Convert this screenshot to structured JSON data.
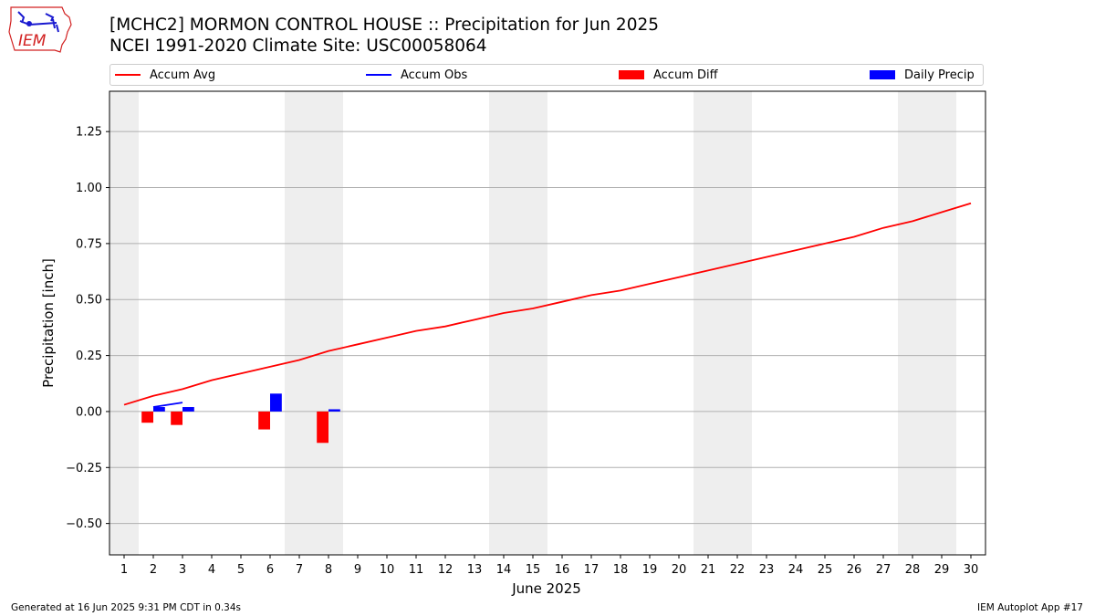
{
  "logo": {
    "text": "IEM",
    "color": "#d22222",
    "accent": "#1a1ad0"
  },
  "header": {
    "title_line1": "[MCHC2] MORMON CONTROL HOUSE :: Precipitation for Jun 2025",
    "title_line2": "NCEI 1991-2020 Climate Site: USC00058064"
  },
  "legend": {
    "items": [
      {
        "label": "Accum Avg",
        "kind": "line",
        "color": "#ff0000"
      },
      {
        "label": "Accum Obs",
        "kind": "line",
        "color": "#0000ff"
      },
      {
        "label": "Accum Diff",
        "kind": "box",
        "color": "#ff0000"
      },
      {
        "label": "Daily Precip",
        "kind": "box",
        "color": "#0000ff"
      }
    ],
    "placement": "top, spanning full width above plot"
  },
  "footer": {
    "left": "Generated at 16 Jun 2025 9:31 PM CDT in 0.34s",
    "right": "IEM Autoplot App #17"
  },
  "chart_data": {
    "type": "line",
    "xlabel": "June 2025",
    "ylabel": "Precipitation [inch]",
    "xlim": [
      0.5,
      30.5
    ],
    "ylim": [
      -0.64,
      1.43
    ],
    "x_ticks": [
      1,
      2,
      3,
      4,
      5,
      6,
      7,
      8,
      9,
      10,
      11,
      12,
      13,
      14,
      15,
      16,
      17,
      18,
      19,
      20,
      21,
      22,
      23,
      24,
      25,
      26,
      27,
      28,
      29,
      30
    ],
    "y_ticks": [
      -0.5,
      -0.25,
      0.0,
      0.25,
      0.5,
      0.75,
      1.0,
      1.25
    ],
    "y_tick_labels": [
      "−0.50",
      "−0.25",
      "0.00",
      "0.25",
      "0.50",
      "0.75",
      "1.00",
      "1.25"
    ],
    "grid": "horizontal",
    "weekend_shading": [
      [
        0.5,
        1.5
      ],
      [
        6.5,
        8.5
      ],
      [
        13.5,
        15.5
      ],
      [
        20.5,
        22.5
      ],
      [
        27.5,
        29.5
      ]
    ],
    "weekend_color": "#eeeeee",
    "series": [
      {
        "name": "Accum Avg",
        "kind": "line",
        "color": "#ff0000",
        "x": [
          1,
          2,
          3,
          4,
          5,
          6,
          7,
          8,
          9,
          10,
          11,
          12,
          13,
          14,
          15,
          16,
          17,
          18,
          19,
          20,
          21,
          22,
          23,
          24,
          25,
          26,
          27,
          28,
          29,
          30
        ],
        "values": [
          0.03,
          0.07,
          0.1,
          0.14,
          0.17,
          0.2,
          0.23,
          0.27,
          0.3,
          0.33,
          0.36,
          0.38,
          0.41,
          0.44,
          0.46,
          0.49,
          0.52,
          0.54,
          0.57,
          0.6,
          0.63,
          0.66,
          0.69,
          0.72,
          0.75,
          0.78,
          0.82,
          0.85,
          0.89,
          0.93
        ]
      },
      {
        "name": "Accum Obs",
        "kind": "line",
        "color": "#0000ff",
        "x": [
          2,
          3
        ],
        "values": [
          0.02,
          0.04
        ]
      },
      {
        "name": "Accum Diff",
        "kind": "bar",
        "color": "#ff0000",
        "x": [
          2,
          3,
          6,
          8
        ],
        "values": [
          -0.05,
          -0.06,
          -0.08,
          -0.14
        ]
      },
      {
        "name": "Daily Precip",
        "kind": "bar",
        "color": "#0000ff",
        "x": [
          2,
          3,
          6,
          8
        ],
        "values": [
          0.02,
          0.02,
          0.08,
          0.01
        ]
      }
    ]
  }
}
